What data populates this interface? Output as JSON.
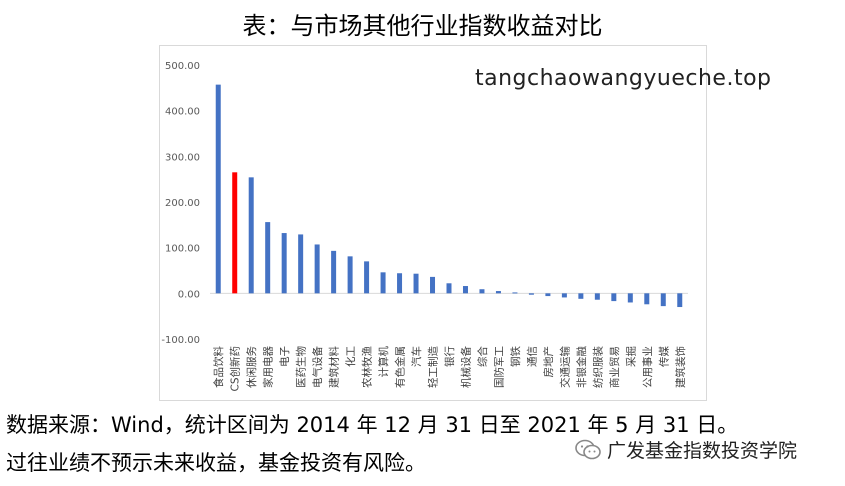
{
  "page": {
    "title": "表：与市场其他行业指数收益对比",
    "watermark": "tangchaowangyueche.top",
    "footnote_1": "数据来源：Wind，统计区间为 2014 年 12 月 31 日至 2021 年 5 月 31 日。",
    "footnote_2": "过往业绩不预示未来收益，基金投资有风险。",
    "brand": "广发基金指数投资学院"
  },
  "colors": {
    "default_bar": "#4472c4",
    "highlight_bar": "#ff0000",
    "grid": "#d9d9d9",
    "axis_text": "#595959"
  },
  "chart_data": {
    "type": "bar",
    "title": "",
    "xlabel": "",
    "ylabel": "",
    "ylim": [
      -100,
      500
    ],
    "y_ticks": [
      "-100.00",
      "0.00",
      "100.00",
      "200.00",
      "300.00",
      "400.00",
      "500.00"
    ],
    "grid": false,
    "highlight_category": "CS创新药",
    "categories": [
      "食品饮料",
      "CS创新药",
      "休闲服务",
      "家用电器",
      "电子",
      "医药生物",
      "电气设备",
      "建筑材料",
      "化工",
      "农林牧渔",
      "计算机",
      "有色金属",
      "汽车",
      "轻工制造",
      "银行",
      "机械设备",
      "综合",
      "国防军工",
      "钢铁",
      "通信",
      "房地产",
      "交通运输",
      "非银金融",
      "纺织服装",
      "商业贸易",
      "采掘",
      "公用事业",
      "传媒",
      "建筑装饰"
    ],
    "values": [
      457,
      265,
      254,
      156,
      132,
      129,
      107,
      93,
      81,
      70,
      46,
      44,
      43,
      36,
      22,
      16,
      9,
      5,
      2,
      -3,
      -6,
      -9,
      -12,
      -14,
      -17,
      -20,
      -24,
      -28,
      -30
    ]
  }
}
